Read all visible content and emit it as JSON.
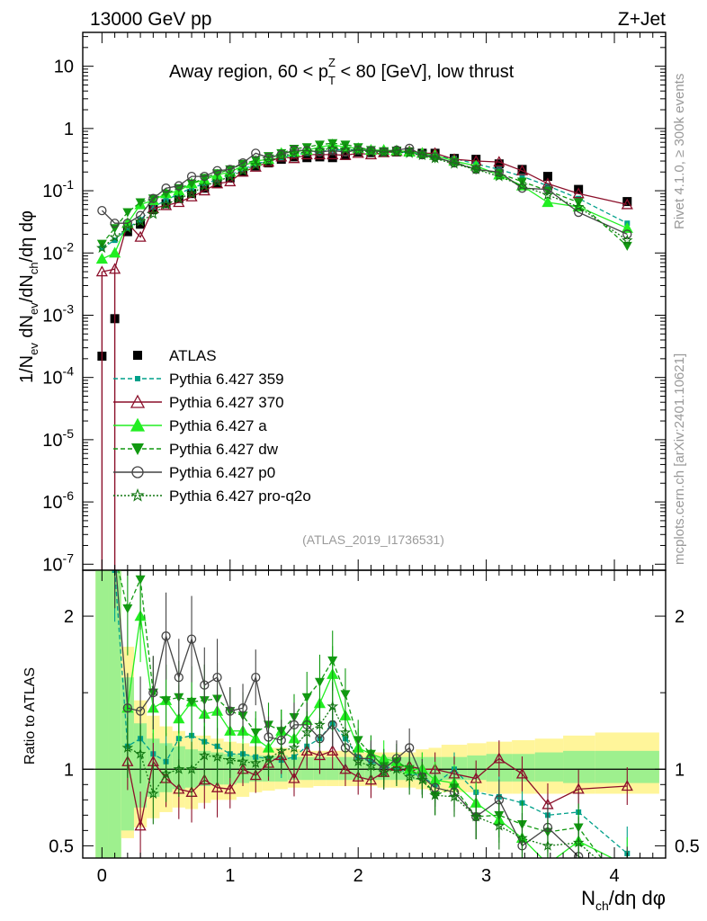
{
  "header": {
    "energy_label": "13000 GeV pp",
    "process_label": "Z+Jet",
    "rivet_label": "Rivet 4.1.0, ≥ 300k events",
    "mcplots_label": "mcplots.cern.ch [arXiv:2401.10621]",
    "analysis_id": "(ATLAS_2019_I1736531)"
  },
  "chart_data": [
    {
      "type": "line",
      "panel": "main",
      "title": "Away region, 60 < p_T^Z < 80 [GeV], low thrust",
      "ylabel": "1/N_ev dN_ev/dN_ch/dη dφ",
      "yscale": "log",
      "ylim": [
        8e-08,
        35
      ],
      "xlim": [
        -0.15,
        4.4
      ],
      "y_tick_labels": [
        "10^-7",
        "10^-6",
        "10^-5",
        "10^-4",
        "10^-3",
        "10^-2",
        "10^-1",
        "1",
        "10"
      ],
      "x": [
        0.0,
        0.1,
        0.2,
        0.3,
        0.4,
        0.5,
        0.6,
        0.7,
        0.8,
        0.9,
        1.0,
        1.1,
        1.2,
        1.3,
        1.4,
        1.5,
        1.6,
        1.7,
        1.8,
        1.9,
        2.0,
        2.1,
        2.2,
        2.3,
        2.4,
        2.5,
        2.6,
        2.75,
        2.92,
        3.1,
        3.28,
        3.48,
        3.72,
        4.1
      ],
      "series": [
        {
          "name": "ATLAS",
          "color": "#000000",
          "marker": "square",
          "line": "none",
          "values": [
            0.00022,
            0.00088,
            0.022,
            0.029,
            0.05,
            0.062,
            0.075,
            0.09,
            0.11,
            0.13,
            0.16,
            0.2,
            0.25,
            0.28,
            0.32,
            0.35,
            0.34,
            0.35,
            0.34,
            0.37,
            0.42,
            0.41,
            0.42,
            0.42,
            0.42,
            0.4,
            0.4,
            0.33,
            0.32,
            0.27,
            0.22,
            0.17,
            0.105,
            0.067
          ]
        },
        {
          "name": "Pythia 6.427 359",
          "color": "#00a08a",
          "marker": "square-small",
          "line": "dashed",
          "values": [
            0.012,
            0.016,
            0.025,
            0.034,
            0.055,
            0.07,
            0.09,
            0.11,
            0.13,
            0.15,
            0.18,
            0.22,
            0.27,
            0.3,
            0.34,
            0.38,
            0.4,
            0.43,
            0.45,
            0.46,
            0.45,
            0.44,
            0.43,
            0.42,
            0.41,
            0.38,
            0.36,
            0.33,
            0.27,
            0.22,
            0.17,
            0.12,
            0.075,
            0.03
          ]
        },
        {
          "name": "Pythia 6.427 370",
          "color": "#8b0f2a",
          "marker": "triangle-open",
          "line": "solid",
          "values": [
            0.005,
            0.0055,
            0.03,
            0.018,
            0.052,
            0.058,
            0.065,
            0.08,
            0.1,
            0.13,
            0.14,
            0.2,
            0.24,
            0.29,
            0.35,
            0.33,
            0.38,
            0.38,
            0.38,
            0.37,
            0.4,
            0.38,
            0.41,
            0.43,
            0.43,
            0.4,
            0.4,
            0.32,
            0.3,
            0.29,
            0.21,
            0.13,
            0.09,
            0.06
          ]
        },
        {
          "name": "Pythia 6.427 a",
          "color": "#22ee22",
          "marker": "triangle",
          "line": "solid",
          "values": [
            0.008,
            0.01,
            0.03,
            0.06,
            0.07,
            0.09,
            0.1,
            0.13,
            0.15,
            0.18,
            0.2,
            0.25,
            0.3,
            0.32,
            0.4,
            0.42,
            0.45,
            0.5,
            0.55,
            0.5,
            0.48,
            0.45,
            0.45,
            0.44,
            0.42,
            0.4,
            0.37,
            0.3,
            0.25,
            0.18,
            0.12,
            0.065,
            0.055,
            0.025
          ]
        },
        {
          "name": "Pythia 6.427 dw",
          "color": "#119911",
          "marker": "triangle-down",
          "line": "dashed",
          "values": [
            0.014,
            0.025,
            0.045,
            0.065,
            0.075,
            0.09,
            0.11,
            0.13,
            0.16,
            0.19,
            0.22,
            0.27,
            0.31,
            0.36,
            0.4,
            0.47,
            0.5,
            0.55,
            0.58,
            0.55,
            0.5,
            0.45,
            0.43,
            0.44,
            0.42,
            0.38,
            0.33,
            0.29,
            0.22,
            0.19,
            0.14,
            0.1,
            0.065,
            0.013
          ]
        },
        {
          "name": "Pythia 6.427 p0",
          "color": "#444444",
          "marker": "circle-open",
          "line": "solid",
          "values": [
            0.048,
            0.03,
            0.03,
            0.04,
            0.075,
            0.11,
            0.12,
            0.17,
            0.17,
            0.21,
            0.22,
            0.28,
            0.4,
            0.34,
            0.38,
            0.45,
            0.44,
            0.42,
            0.44,
            0.42,
            0.45,
            0.44,
            0.42,
            0.45,
            0.48,
            0.38,
            0.35,
            0.28,
            0.22,
            0.2,
            0.11,
            0.105,
            0.045,
            0.02
          ]
        },
        {
          "name": "Pythia 6.427 pro-q2o",
          "color": "#117711",
          "marker": "star",
          "line": "dotted",
          "values": [
            0.012,
            0.018,
            0.025,
            0.032,
            0.042,
            0.06,
            0.075,
            0.09,
            0.12,
            0.14,
            0.17,
            0.21,
            0.26,
            0.3,
            0.36,
            0.4,
            0.42,
            0.45,
            0.48,
            0.46,
            0.44,
            0.42,
            0.41,
            0.42,
            0.4,
            0.37,
            0.33,
            0.27,
            0.22,
            0.17,
            0.12,
            0.085,
            0.055,
            0.016
          ]
        }
      ]
    },
    {
      "type": "line",
      "panel": "ratio",
      "ylabel": "Ratio to ATLAS",
      "xlabel": "N_ch/dη dφ",
      "ylim": [
        0.42,
        2.3
      ],
      "xlim": [
        -0.15,
        4.4
      ],
      "y_tick_labels": [
        "0.5",
        "1",
        "2"
      ],
      "x_tick_labels": [
        "0",
        "1",
        "2",
        "3",
        "4"
      ],
      "band_edges": [
        -0.05,
        0.05,
        0.15,
        0.25,
        0.35,
        0.45,
        0.55,
        0.65,
        0.75,
        0.85,
        0.95,
        1.05,
        1.15,
        1.25,
        1.35,
        1.45,
        1.55,
        1.65,
        1.75,
        1.85,
        1.95,
        2.05,
        2.15,
        2.25,
        2.35,
        2.45,
        2.55,
        2.65,
        2.85,
        3.0,
        3.2,
        3.38,
        3.6,
        3.85,
        4.35
      ],
      "stat_band": [
        [
          0.3,
          2.5
        ],
        [
          0.3,
          2.5
        ],
        [
          0.6,
          1.6
        ],
        [
          0.75,
          1.3
        ],
        [
          0.82,
          1.2
        ],
        [
          0.85,
          1.17
        ],
        [
          0.87,
          1.15
        ],
        [
          0.88,
          1.13
        ],
        [
          0.89,
          1.12
        ],
        [
          0.9,
          1.11
        ],
        [
          0.9,
          1.1
        ],
        [
          0.91,
          1.1
        ],
        [
          0.92,
          1.09
        ],
        [
          0.92,
          1.09
        ],
        [
          0.92,
          1.09
        ],
        [
          0.93,
          1.08
        ],
        [
          0.93,
          1.08
        ],
        [
          0.93,
          1.08
        ],
        [
          0.93,
          1.08
        ],
        [
          0.93,
          1.08
        ],
        [
          0.93,
          1.08
        ],
        [
          0.93,
          1.08
        ],
        [
          0.93,
          1.08
        ],
        [
          0.93,
          1.08
        ],
        [
          0.93,
          1.08
        ],
        [
          0.93,
          1.08
        ],
        [
          0.93,
          1.08
        ],
        [
          0.93,
          1.08
        ],
        [
          0.93,
          1.09
        ],
        [
          0.92,
          1.1
        ],
        [
          0.92,
          1.1
        ],
        [
          0.92,
          1.11
        ],
        [
          0.91,
          1.12
        ],
        [
          0.91,
          1.12
        ]
      ],
      "total_band": [
        [
          0.3,
          2.5
        ],
        [
          0.3,
          2.5
        ],
        [
          0.55,
          1.8
        ],
        [
          0.62,
          1.45
        ],
        [
          0.68,
          1.35
        ],
        [
          0.72,
          1.28
        ],
        [
          0.75,
          1.25
        ],
        [
          0.74,
          1.22
        ],
        [
          0.78,
          1.22
        ],
        [
          0.8,
          1.2
        ],
        [
          0.8,
          1.18
        ],
        [
          0.82,
          1.17
        ],
        [
          0.85,
          1.15
        ],
        [
          0.86,
          1.14
        ],
        [
          0.87,
          1.14
        ],
        [
          0.88,
          1.13
        ],
        [
          0.88,
          1.12
        ],
        [
          0.89,
          1.12
        ],
        [
          0.89,
          1.12
        ],
        [
          0.89,
          1.12
        ],
        [
          0.89,
          1.11
        ],
        [
          0.89,
          1.11
        ],
        [
          0.88,
          1.11
        ],
        [
          0.88,
          1.11
        ],
        [
          0.88,
          1.11
        ],
        [
          0.87,
          1.13
        ],
        [
          0.86,
          1.14
        ],
        [
          0.85,
          1.16
        ],
        [
          0.85,
          1.17
        ],
        [
          0.84,
          1.18
        ],
        [
          0.84,
          1.19
        ],
        [
          0.84,
          1.2
        ],
        [
          0.84,
          1.22
        ],
        [
          0.84,
          1.24
        ]
      ],
      "series": [
        {
          "name": "Pythia 6.427 359",
          "color": "#00a08a",
          "marker": "square-small",
          "line": "dashed",
          "values": [
            null,
            2.3,
            1.15,
            1.2,
            1.1,
            1.05,
            1.2,
            1.22,
            1.18,
            1.15,
            1.1,
            1.1,
            1.08,
            1.07,
            1.06,
            1.08,
            1.15,
            1.2,
            1.3,
            1.2,
            1.08,
            1.05,
            1.02,
            1.0,
            0.98,
            0.95,
            0.9,
            1.0,
            0.85,
            0.82,
            0.78,
            0.7,
            0.72,
            0.45
          ]
        },
        {
          "name": "Pythia 6.427 370",
          "color": "#8b0f2a",
          "marker": "triangle-open",
          "line": "solid",
          "values": [
            null,
            null,
            1.05,
            0.63,
            1.05,
            0.94,
            0.87,
            0.85,
            0.93,
            0.88,
            0.87,
            1.0,
            0.96,
            1.04,
            1.09,
            0.94,
            1.12,
            1.09,
            1.12,
            1.0,
            0.95,
            0.93,
            0.98,
            1.02,
            1.02,
            1.0,
            1.0,
            0.97,
            0.94,
            1.07,
            0.97,
            0.77,
            0.87,
            0.89
          ]
        },
        {
          "name": "Pythia 6.427 a",
          "color": "#22ee22",
          "marker": "triangle",
          "line": "solid",
          "values": [
            null,
            null,
            1.4,
            2.0,
            1.4,
            1.45,
            1.33,
            1.44,
            1.36,
            1.38,
            1.25,
            1.25,
            1.2,
            1.14,
            1.25,
            1.2,
            1.32,
            1.43,
            1.62,
            1.35,
            1.14,
            1.1,
            1.07,
            1.05,
            1.0,
            1.0,
            0.93,
            0.91,
            0.78,
            0.67,
            0.55,
            0.38,
            0.53,
            0.37
          ]
        },
        {
          "name": "Pythia 6.427 dw",
          "color": "#119911",
          "marker": "triangle-down",
          "line": "dashed",
          "values": [
            null,
            2.4,
            2.05,
            2.24,
            1.5,
            1.45,
            1.47,
            1.44,
            1.45,
            1.46,
            1.38,
            1.35,
            1.24,
            1.29,
            1.25,
            1.34,
            1.47,
            1.57,
            1.71,
            1.49,
            1.19,
            1.1,
            1.02,
            1.05,
            1.0,
            0.95,
            0.83,
            0.88,
            0.69,
            0.7,
            0.64,
            0.59,
            0.62,
            0.19
          ]
        },
        {
          "name": "Pythia 6.427 p0",
          "color": "#444444",
          "marker": "circle-open",
          "line": "solid",
          "values": [
            null,
            2.4,
            1.4,
            1.38,
            1.5,
            1.87,
            1.6,
            1.85,
            1.55,
            1.6,
            1.38,
            1.4,
            1.6,
            1.21,
            1.19,
            1.29,
            1.29,
            1.2,
            1.29,
            1.14,
            1.07,
            1.07,
            1.0,
            1.07,
            1.14,
            0.95,
            0.88,
            0.85,
            0.69,
            0.8,
            0.5,
            0.62,
            0.43,
            0.3
          ]
        },
        {
          "name": "Pythia 6.427 pro-q2o",
          "color": "#117711",
          "marker": "star",
          "line": "dotted",
          "values": [
            null,
            null,
            1.14,
            1.1,
            0.84,
            0.97,
            1.0,
            1.0,
            1.09,
            1.08,
            1.06,
            1.05,
            1.04,
            1.07,
            1.12,
            1.14,
            1.24,
            1.29,
            1.41,
            1.24,
            1.05,
            1.02,
            0.98,
            1.0,
            0.95,
            0.93,
            0.83,
            0.82,
            0.69,
            0.63,
            0.55,
            0.5,
            0.52,
            0.24
          ]
        }
      ]
    }
  ]
}
